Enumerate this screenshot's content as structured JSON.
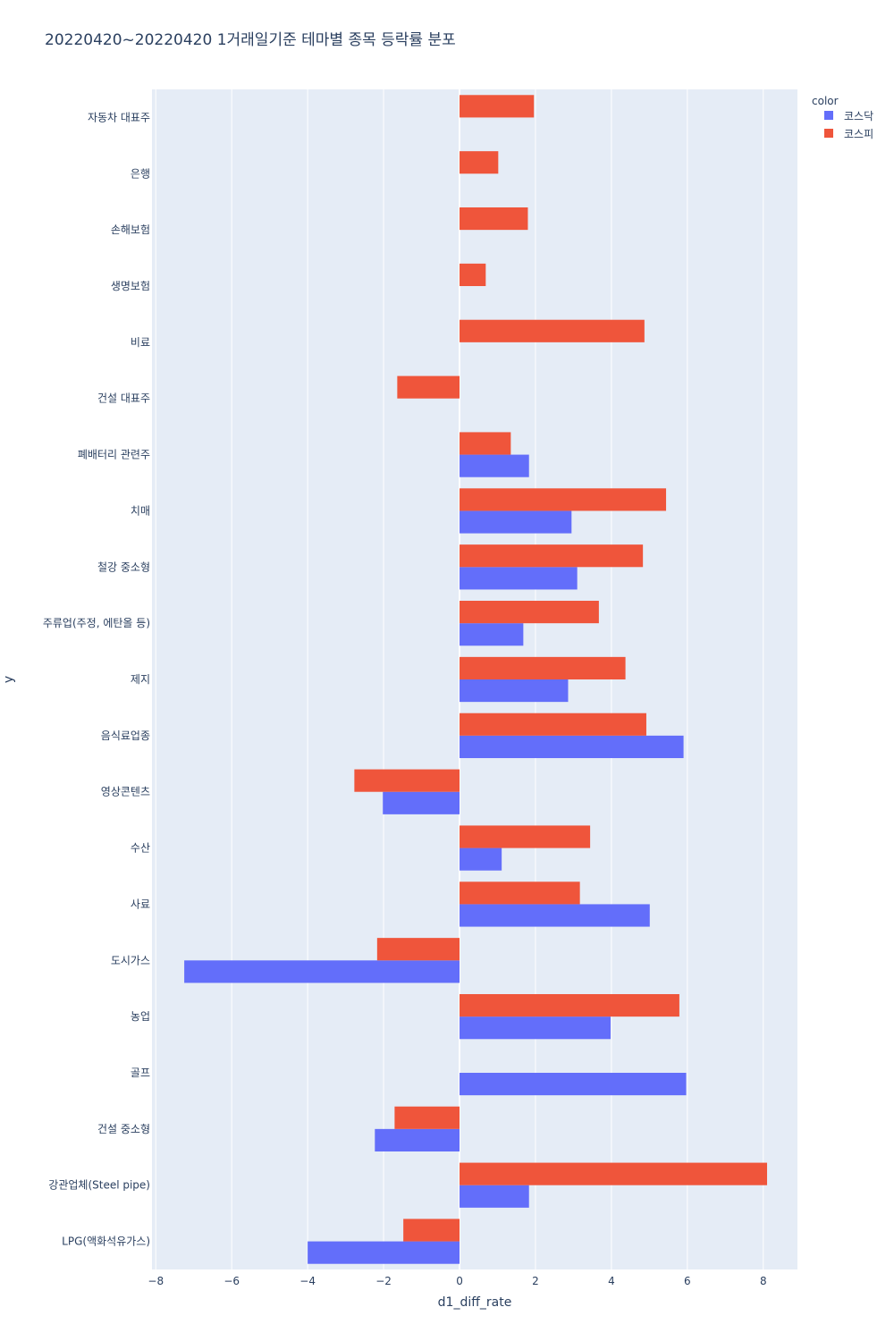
{
  "chart_data": {
    "type": "bar",
    "orientation": "horizontal",
    "title": "20220420~20220420 1거래일기준 테마별 종목 등락률 분포",
    "xlabel": "d1_diff_rate",
    "ylabel": "y",
    "xlim": [
      -8.1,
      8.9
    ],
    "xticks": [
      -8,
      -6,
      -4,
      -2,
      0,
      2,
      4,
      6,
      8
    ],
    "xtick_labels": [
      "−8",
      "−6",
      "−4",
      "−2",
      "0",
      "2",
      "4",
      "6",
      "8"
    ],
    "grid": true,
    "legend": {
      "title": "color",
      "position": "top-right"
    },
    "categories": [
      "자동차 대표주",
      "은행",
      "손해보험",
      "생명보험",
      "비료",
      "건설 대표주",
      "폐배터리 관련주",
      "치매",
      "철강 중소형",
      "주류업(주정, 에탄올 등)",
      "제지",
      "음식료업종",
      "영상콘텐츠",
      "수산",
      "사료",
      "도시가스",
      "농업",
      "골프",
      "건설 중소형",
      "강관업체(Steel pipe)",
      "LPG(액화석유가스)"
    ],
    "series": [
      {
        "name": "코스닥",
        "color": "#636efa",
        "values": [
          null,
          null,
          null,
          null,
          null,
          null,
          1.83,
          2.95,
          3.1,
          1.68,
          2.86,
          5.9,
          -2.02,
          1.11,
          5.01,
          -7.25,
          3.98,
          5.97,
          -2.23,
          1.83,
          -4.0
        ]
      },
      {
        "name": "코스피",
        "color": "#ef553b",
        "values": [
          1.96,
          1.02,
          1.8,
          0.69,
          4.87,
          -1.64,
          1.35,
          5.44,
          4.83,
          3.67,
          4.37,
          4.92,
          -2.77,
          3.44,
          3.17,
          -2.17,
          5.79,
          null,
          -1.71,
          8.1,
          -1.48
        ]
      }
    ]
  }
}
